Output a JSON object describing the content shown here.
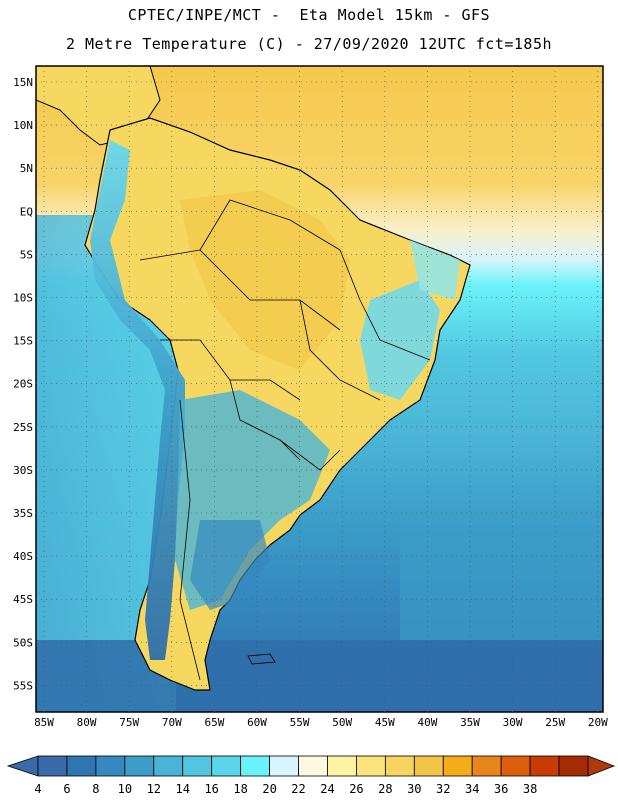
{
  "header": {
    "title_line1": "CPTEC/INPE/MCT -  Eta Model 15km - GFS",
    "title_line2": "2 Metre Temperature (C) - 27/09/2020 12UTC fct=185h"
  },
  "map": {
    "lat_labels": [
      "15N",
      "10N",
      "5N",
      "EQ",
      "5S",
      "10S",
      "15S",
      "20S",
      "25S",
      "30S",
      "35S",
      "40S",
      "45S",
      "50S",
      "55S"
    ],
    "lon_labels": [
      "85W",
      "80W",
      "75W",
      "70W",
      "65W",
      "60W",
      "55W",
      "50W",
      "45W",
      "40W",
      "35W",
      "30W",
      "25W",
      "20W"
    ],
    "land_color": "#f6d860",
    "ocean_warm_color": "#f2c648",
    "ocean_cool_color": "#2d6faa"
  },
  "colorbar": {
    "ticks": [
      "4",
      "6",
      "8",
      "10",
      "12",
      "14",
      "16",
      "18",
      "20",
      "22",
      "24",
      "26",
      "28",
      "30",
      "32",
      "34",
      "36",
      "38"
    ],
    "colors": [
      "#3a6aa8",
      "#2f76b1",
      "#3589bf",
      "#3c9ec9",
      "#4ab4d6",
      "#52c6e0",
      "#5ad6ea",
      "#6af2fa",
      "#d8f4fc",
      "#fef8e2",
      "#fcf4a2",
      "#fae47a",
      "#f6d462",
      "#f2c44a",
      "#f4ac1a",
      "#e8841c",
      "#dc5e0c",
      "#c83c04",
      "#a42c04"
    ],
    "min_arrow_color": "#3a6aa8",
    "max_arrow_color": "#b03a0c"
  }
}
